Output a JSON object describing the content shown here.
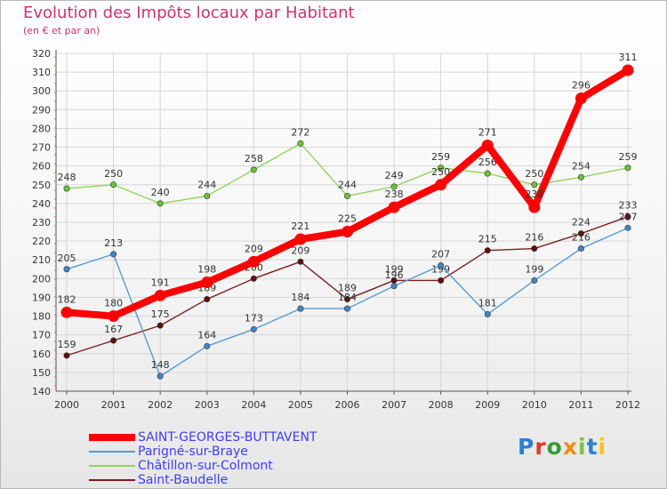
{
  "chart_data": {
    "type": "line",
    "title": "Evolution des Impôts locaux par Habitant",
    "subtitle": "(en € et par an)",
    "categories": [
      "2000",
      "2001",
      "2002",
      "2003",
      "2004",
      "2005",
      "2006",
      "2007",
      "2008",
      "2009",
      "2010",
      "2011",
      "2012"
    ],
    "ylim": [
      140,
      320
    ],
    "yticks": [
      140,
      150,
      160,
      170,
      180,
      190,
      200,
      210,
      220,
      230,
      240,
      250,
      260,
      270,
      280,
      290,
      300,
      310,
      320
    ],
    "grid": true,
    "series": [
      {
        "name": "Saint-Baudelle",
        "color": "#7a1f1f",
        "markerColor": "#5c1010",
        "values": [
          159,
          167,
          175,
          189,
          200,
          209,
          189,
          199,
          199,
          215,
          216,
          224,
          233
        ],
        "labels": [
          "159",
          "167",
          "175",
          "189",
          "200",
          "209",
          "189",
          "199",
          "199",
          "215",
          "216",
          "224",
          "233"
        ]
      },
      {
        "name": "Parigné-sur-Braye",
        "color": "#5a9acf",
        "markerColor": "#3f86c6",
        "values": [
          205,
          213,
          148,
          164,
          173,
          184,
          184,
          196,
          207,
          181,
          199,
          216,
          227
        ],
        "labels": [
          "205",
          "213",
          "148",
          "164",
          "173",
          "184",
          "184",
          "196",
          "207",
          "181",
          "199",
          "216",
          "227"
        ]
      },
      {
        "name": "Châtillon-sur-Colmont",
        "color": "#8fd45e",
        "markerColor": "#6cc23a",
        "values": [
          248,
          250,
          240,
          244,
          258,
          272,
          244,
          249,
          259,
          256,
          250,
          254,
          259
        ],
        "labels": [
          "248",
          "250",
          "240",
          "244",
          "258",
          "272",
          "244",
          "249",
          "259",
          "256",
          "250",
          "254",
          "259"
        ]
      },
      {
        "name": "SAINT-GEORGES-BUTTAVENT",
        "color": "#ff0000",
        "markerColor": "#ff0000",
        "values": [
          182,
          180,
          191,
          198,
          209,
          221,
          225,
          238,
          250,
          271,
          238,
          296,
          311
        ],
        "labels": [
          "182",
          "180",
          "191",
          "198",
          "209",
          "221",
          "225",
          "238",
          "250",
          "271",
          "238",
          "296",
          "311"
        ]
      }
    ]
  },
  "legend": {
    "items": [
      {
        "label": "SAINT-GEORGES-BUTTAVENT",
        "color": "#ff0000",
        "textColor": "#3d3dff",
        "thick": true
      },
      {
        "label": "Parigné-sur-Braye",
        "color": "#5a9acf",
        "textColor": "#3d3dff",
        "thick": false
      },
      {
        "label": "Châtillon-sur-Colmont",
        "color": "#8fd45e",
        "textColor": "#3d3dff",
        "thick": false
      },
      {
        "label": "Saint-Baudelle",
        "color": "#7a1f1f",
        "textColor": "#3d3dff",
        "thick": false
      }
    ]
  },
  "logo": {
    "text": "Proxiti",
    "colors": [
      "#2f7fd0",
      "#e03a2a",
      "#2f9f3a",
      "#f08c14",
      "#7ac143",
      "#2f7fd0",
      "#f0c814"
    ]
  }
}
